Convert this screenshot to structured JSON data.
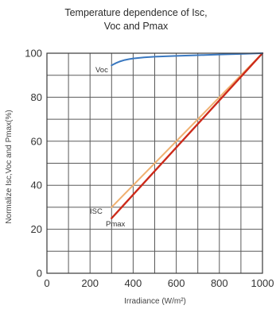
{
  "chart_data": {
    "type": "line",
    "title": [
      "Temperature dependence of Isc,",
      "Voc and Pmax"
    ],
    "xlabel": "Irradiance (W/m²)",
    "ylabel": "Normalize Isc,Voc and Pmax(%)",
    "xlim": [
      0,
      1000
    ],
    "ylim": [
      0,
      100
    ],
    "x_ticks": [
      0,
      200,
      400,
      600,
      800,
      1000
    ],
    "y_ticks": [
      0,
      20,
      40,
      60,
      80,
      100
    ],
    "x_grid_step": 100,
    "y_grid_step": 10,
    "grid": true,
    "series": [
      {
        "name": "Voc",
        "color": "#3a78c0",
        "x": [
          300,
          320,
          340,
          360,
          380,
          400,
          450,
          500,
          600,
          700,
          800,
          900,
          1000
        ],
        "y": [
          94.5,
          95.5,
          96.3,
          96.9,
          97.3,
          97.6,
          98.1,
          98.4,
          98.8,
          99.1,
          99.4,
          99.7,
          100
        ]
      },
      {
        "name": "ISC",
        "color": "#f0b070",
        "x": [
          300,
          1000
        ],
        "y": [
          30,
          100
        ]
      },
      {
        "name": "Pmax",
        "color": "#cc2a1a",
        "x": [
          300,
          1000
        ],
        "y": [
          25,
          100
        ]
      }
    ]
  }
}
